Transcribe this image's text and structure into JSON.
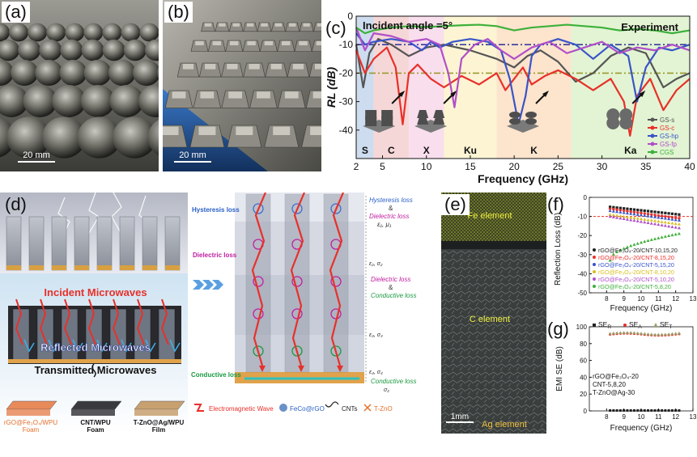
{
  "panels": {
    "a": {
      "label": "(a)",
      "scale": "20 mm"
    },
    "b": {
      "label": "(b)",
      "scale": "20 mm"
    },
    "c": {
      "label": "(c)"
    },
    "d": {
      "label": "(d)"
    },
    "e": {
      "label": "(e)",
      "fe": "Fe element",
      "c": "C element",
      "ag": "Ag element",
      "scale": "1mm"
    },
    "f": {
      "label": "(f)"
    },
    "g": {
      "label": "(g)"
    }
  },
  "panel_d": {
    "incident": "Incident Microwaves",
    "reflected": "Reflected Microwaves",
    "transmitted": "Transmitted Microwaves",
    "foam1": "rGO@Fe₃O₄/WPU",
    "foam1b": "Foam",
    "foam2": "CNT/WPU",
    "foam2b": "Foam",
    "foam3": "T-ZnO@Ag/WPU",
    "foam3b": "Film",
    "hyst_left": "Hysteresis loss",
    "diel_left": "Dielectric loss",
    "cond_left": "Conductive loss",
    "r_hyst": "Hysteresis loss",
    "r_amp1": "&",
    "r_diel1": "Dielectric loss",
    "r_e1": "ε₁, μ₁",
    "r_e2": "ε₂, σ₂",
    "r_diel2": "Dielectric loss",
    "r_amp2": "&",
    "r_cond1": "Conductive loss",
    "r_e3": "ε₃, σ₃",
    "r_e4": "ε₄, σ₄",
    "r_cond2": "Conductive loss",
    "r_s2": "σ₂",
    "legend_em": "Electromagnetic Wave",
    "legend_fe": "FeCo@rGO",
    "legend_cnt": "CNTs",
    "legend_zno": "T-ZnO"
  },
  "chart_data": [
    {
      "id": "c",
      "type": "line",
      "annotation": "Incident angle =5°",
      "annotation2": "Experiment",
      "xlabel": "Frequency (GHz)",
      "ylabel": "RL (dB)",
      "xlim": [
        2,
        40
      ],
      "ylim": [
        -50,
        0
      ],
      "xticks": [
        2,
        5,
        10,
        15,
        20,
        25,
        30,
        35,
        40
      ],
      "yticks": [
        0,
        -10,
        -20,
        -30,
        -40
      ],
      "bands": [
        {
          "name": "S",
          "x0": 2,
          "x1": 4,
          "color": "#b9cde8"
        },
        {
          "name": "C",
          "x0": 4,
          "x1": 8,
          "color": "#f2c6c6"
        },
        {
          "name": "X",
          "x0": 8,
          "x1": 12,
          "color": "#f6d0e6"
        },
        {
          "name": "Ku",
          "x0": 12,
          "x1": 18,
          "color": "#fbf0c0"
        },
        {
          "name": "K",
          "x0": 18,
          "x1": 26.5,
          "color": "#fbd8b8"
        },
        {
          "name": "Ka",
          "x0": 26.5,
          "x1": 40,
          "color": "#d6f0c0"
        }
      ],
      "series": [
        {
          "name": "GS-s",
          "color": "#555555",
          "x": [
            2,
            2.8,
            3.5,
            4.5,
            6,
            8,
            10,
            12,
            15,
            18,
            20,
            21.5,
            23,
            25,
            27,
            29,
            31,
            33,
            35,
            37,
            38.5,
            40
          ],
          "y": [
            -10,
            -25,
            -13,
            -8,
            -10,
            -14,
            -11,
            -10,
            -12,
            -15,
            -18,
            -14,
            -12,
            -16,
            -23,
            -20,
            -14,
            -11,
            -13,
            -25,
            -22,
            -20
          ]
        },
        {
          "name": "GS-c",
          "color": "#e8302a",
          "x": [
            2,
            3,
            4,
            5.5,
            6.5,
            7.3,
            8,
            9,
            10.5,
            12,
            14,
            16,
            18,
            19,
            20,
            21,
            22,
            23.5,
            25,
            27,
            29,
            31,
            32.5,
            33.2,
            34,
            35.5,
            37,
            38.5,
            40
          ],
          "y": [
            -12,
            -20,
            -15,
            -11,
            -18,
            -38,
            -20,
            -17,
            -22,
            -25,
            -21,
            -24,
            -20,
            -26,
            -22,
            -18,
            -24,
            -21,
            -19,
            -22,
            -26,
            -22,
            -30,
            -42,
            -28,
            -22,
            -33,
            -26,
            -22
          ]
        },
        {
          "name": "GS-hp",
          "color": "#3a54c8",
          "x": [
            2,
            3,
            4,
            6,
            8,
            9.5,
            10.5,
            11.5,
            13,
            15,
            17,
            18.5,
            19.5,
            20.5,
            21.3,
            22,
            23,
            25,
            27,
            29,
            31,
            33,
            34,
            35,
            36.5,
            38,
            40
          ],
          "y": [
            -6,
            -10,
            -9,
            -8,
            -9,
            -12,
            -9,
            -11,
            -9,
            -8,
            -9,
            -12,
            -22,
            -38,
            -28,
            -14,
            -10,
            -8,
            -10,
            -15,
            -10,
            -14,
            -30,
            -18,
            -11,
            -12,
            -10
          ]
        },
        {
          "name": "GS-fp",
          "color": "#b04fc8",
          "x": [
            2,
            3,
            4,
            6,
            8,
            10,
            11.5,
            12.5,
            13.2,
            14,
            15.5,
            17,
            18.5,
            20,
            22,
            24,
            26,
            28,
            30,
            32,
            34,
            36,
            38,
            40
          ],
          "y": [
            -4,
            -12,
            -6,
            -7,
            -9,
            -8,
            -10,
            -20,
            -32,
            -15,
            -10,
            -8,
            -12,
            -15,
            -11,
            -9,
            -13,
            -11,
            -9,
            -13,
            -11,
            -12,
            -10,
            -12
          ]
        },
        {
          "name": "CGS",
          "color": "#3db03a",
          "x": [
            2,
            3,
            4,
            5,
            6,
            8,
            10,
            12,
            14,
            16,
            18,
            20,
            22,
            24,
            26,
            28,
            30,
            32,
            34,
            36,
            38,
            40
          ],
          "y": [
            -4,
            -6,
            -5,
            -4.5,
            -4,
            -3.5,
            -3.8,
            -3.5,
            -3.2,
            -3,
            -3.5,
            -5,
            -4,
            -3.5,
            -3,
            -3.5,
            -4,
            -5,
            -4.5,
            -5,
            -6,
            -5
          ]
        }
      ],
      "reference_lines": [
        {
          "y": -10,
          "color": "#3a3a9a"
        },
        {
          "y": -20,
          "color": "#9a9a30"
        }
      ]
    },
    {
      "id": "f",
      "type": "line",
      "xlabel": "Frequency (GHz)",
      "ylabel": "Reflection Loss (dB)",
      "xlim": [
        7,
        13
      ],
      "ylim": [
        -50,
        0
      ],
      "xticks": [
        8,
        9,
        10,
        11,
        12,
        13
      ],
      "yticks": [
        0,
        -10,
        -20,
        -30,
        -40,
        -50
      ],
      "reference_line": -10,
      "series": [
        {
          "name": "rGO@Fe₃O₄-20/CNT-10,15,20",
          "color": "#222222",
          "marker": "square",
          "y0": -5,
          "y1": -9
        },
        {
          "name": "rGO@Fe₃O₄-20/CNT-8,15,20",
          "color": "#e8302a",
          "marker": "circle",
          "y0": -6,
          "y1": -11
        },
        {
          "name": "rGO@Fe₃O₄-20/CNT-5,15,20",
          "color": "#3a54c8",
          "marker": "triangle",
          "y0": -7,
          "y1": -12
        },
        {
          "name": "rGO@Fe₃O₄-20/CNT-8,10,20",
          "color": "#d8c020",
          "marker": "triangle-down",
          "y0": -9,
          "y1": -14
        },
        {
          "name": "rGO@Fe₃O₄-20/CNT-5,10,20",
          "color": "#b04fc8",
          "marker": "diamond",
          "y0": -10,
          "y1": -16
        },
        {
          "name": "rGO@Fe₃O₄-20/CNT-5,8,20",
          "color": "#3db03a",
          "marker": "triangle-left",
          "y0": -33,
          "y1": -19
        }
      ]
    },
    {
      "id": "g",
      "type": "scatter",
      "xlabel": "Frequency (GHz)",
      "ylabel": "EMI SE (dB)",
      "xlim": [
        7,
        13
      ],
      "ylim": [
        0,
        100
      ],
      "xticks": [
        8,
        9,
        10,
        11,
        12,
        13
      ],
      "yticks": [
        0,
        20,
        40,
        60,
        80,
        100
      ],
      "annotation_lines": [
        "rGO@Fe₃O₄-20",
        "CNT-5,8,20",
        "T-ZnO@Ag-30"
      ],
      "series": [
        {
          "name": "SE",
          "sub": "R",
          "color": "#222222",
          "marker": "square",
          "value": 0.5
        },
        {
          "name": "SE",
          "sub": "A",
          "color": "#e8302a",
          "marker": "circle",
          "value": 91
        },
        {
          "name": "SE",
          "sub": "T",
          "color": "#9aa06a",
          "marker": "triangle",
          "value": 92
        }
      ]
    }
  ]
}
